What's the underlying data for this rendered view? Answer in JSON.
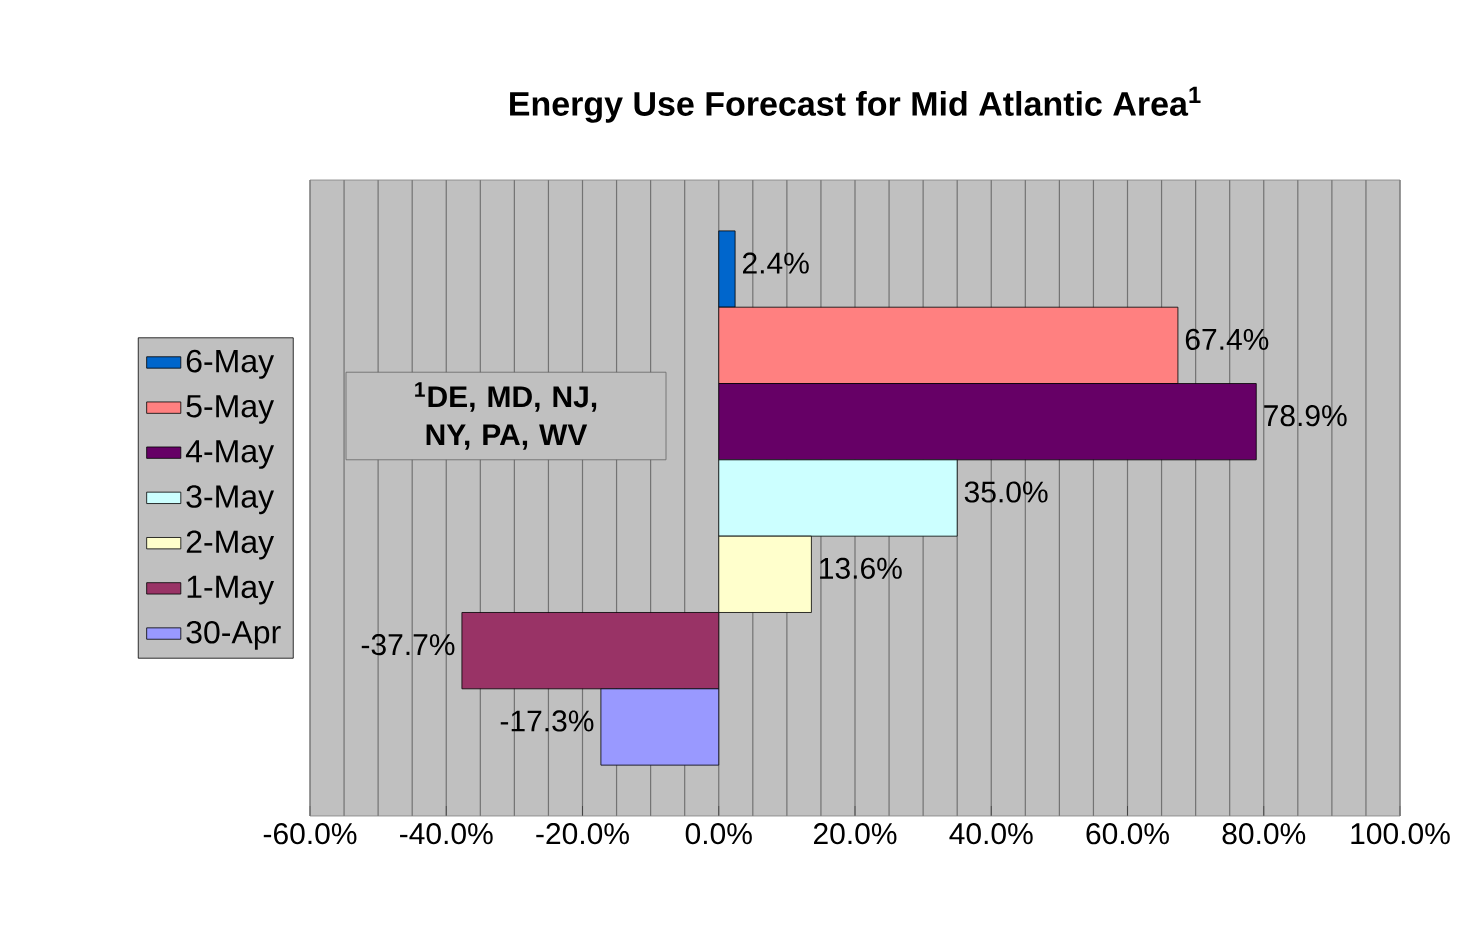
{
  "chart_data": {
    "type": "bar",
    "orientation": "horizontal",
    "title": "Energy Use Forecast for Mid Atlantic Area$^{1}$",
    "categories": [
      null
    ],
    "series": [
      {
        "name": "6-May",
        "color": "#0066cc",
        "values": [
          2.4
        ],
        "value_labels": [
          "2.4%"
        ]
      },
      {
        "name": "5-May",
        "color": "#ff8080",
        "values": [
          67.4
        ],
        "value_labels": [
          "67.4%"
        ]
      },
      {
        "name": "4-May",
        "color": "#660066",
        "values": [
          78.9
        ],
        "value_labels": [
          "78.9%"
        ]
      },
      {
        "name": "3-May",
        "color": "#ccffff",
        "values": [
          35.0
        ],
        "value_labels": [
          "35.0%"
        ]
      },
      {
        "name": "2-May",
        "color": "#ffffcc",
        "values": [
          13.6
        ],
        "value_labels": [
          "13.6%"
        ]
      },
      {
        "name": "1-May",
        "color": "#993366",
        "values": [
          -37.7
        ],
        "value_labels": [
          "-37.7%"
        ]
      },
      {
        "name": "30-Apr",
        "color": "#9999ff",
        "values": [
          -17.3
        ],
        "value_labels": [
          "-17.3%"
        ]
      }
    ],
    "xlim": [
      -60,
      100
    ],
    "xticks": [
      {
        "value": -60,
        "label": "-60.0%"
      },
      {
        "value": -40,
        "label": "-40.0%"
      },
      {
        "value": -20,
        "label": "-20.0%"
      },
      {
        "value": 0,
        "label": "0.0%"
      },
      {
        "value": 20,
        "label": "20.0%"
      },
      {
        "value": 40,
        "label": "40.0%"
      },
      {
        "value": 60,
        "label": "60.0%"
      },
      {
        "value": 80,
        "label": "80.0%"
      },
      {
        "value": 100,
        "label": "100.0%"
      }
    ],
    "tick_labels": "x",
    "grid": "x",
    "legend": "left",
    "annotations": [
      "$^{1}$DE, MD, NJ, NY, PA, WV"
    ]
  }
}
